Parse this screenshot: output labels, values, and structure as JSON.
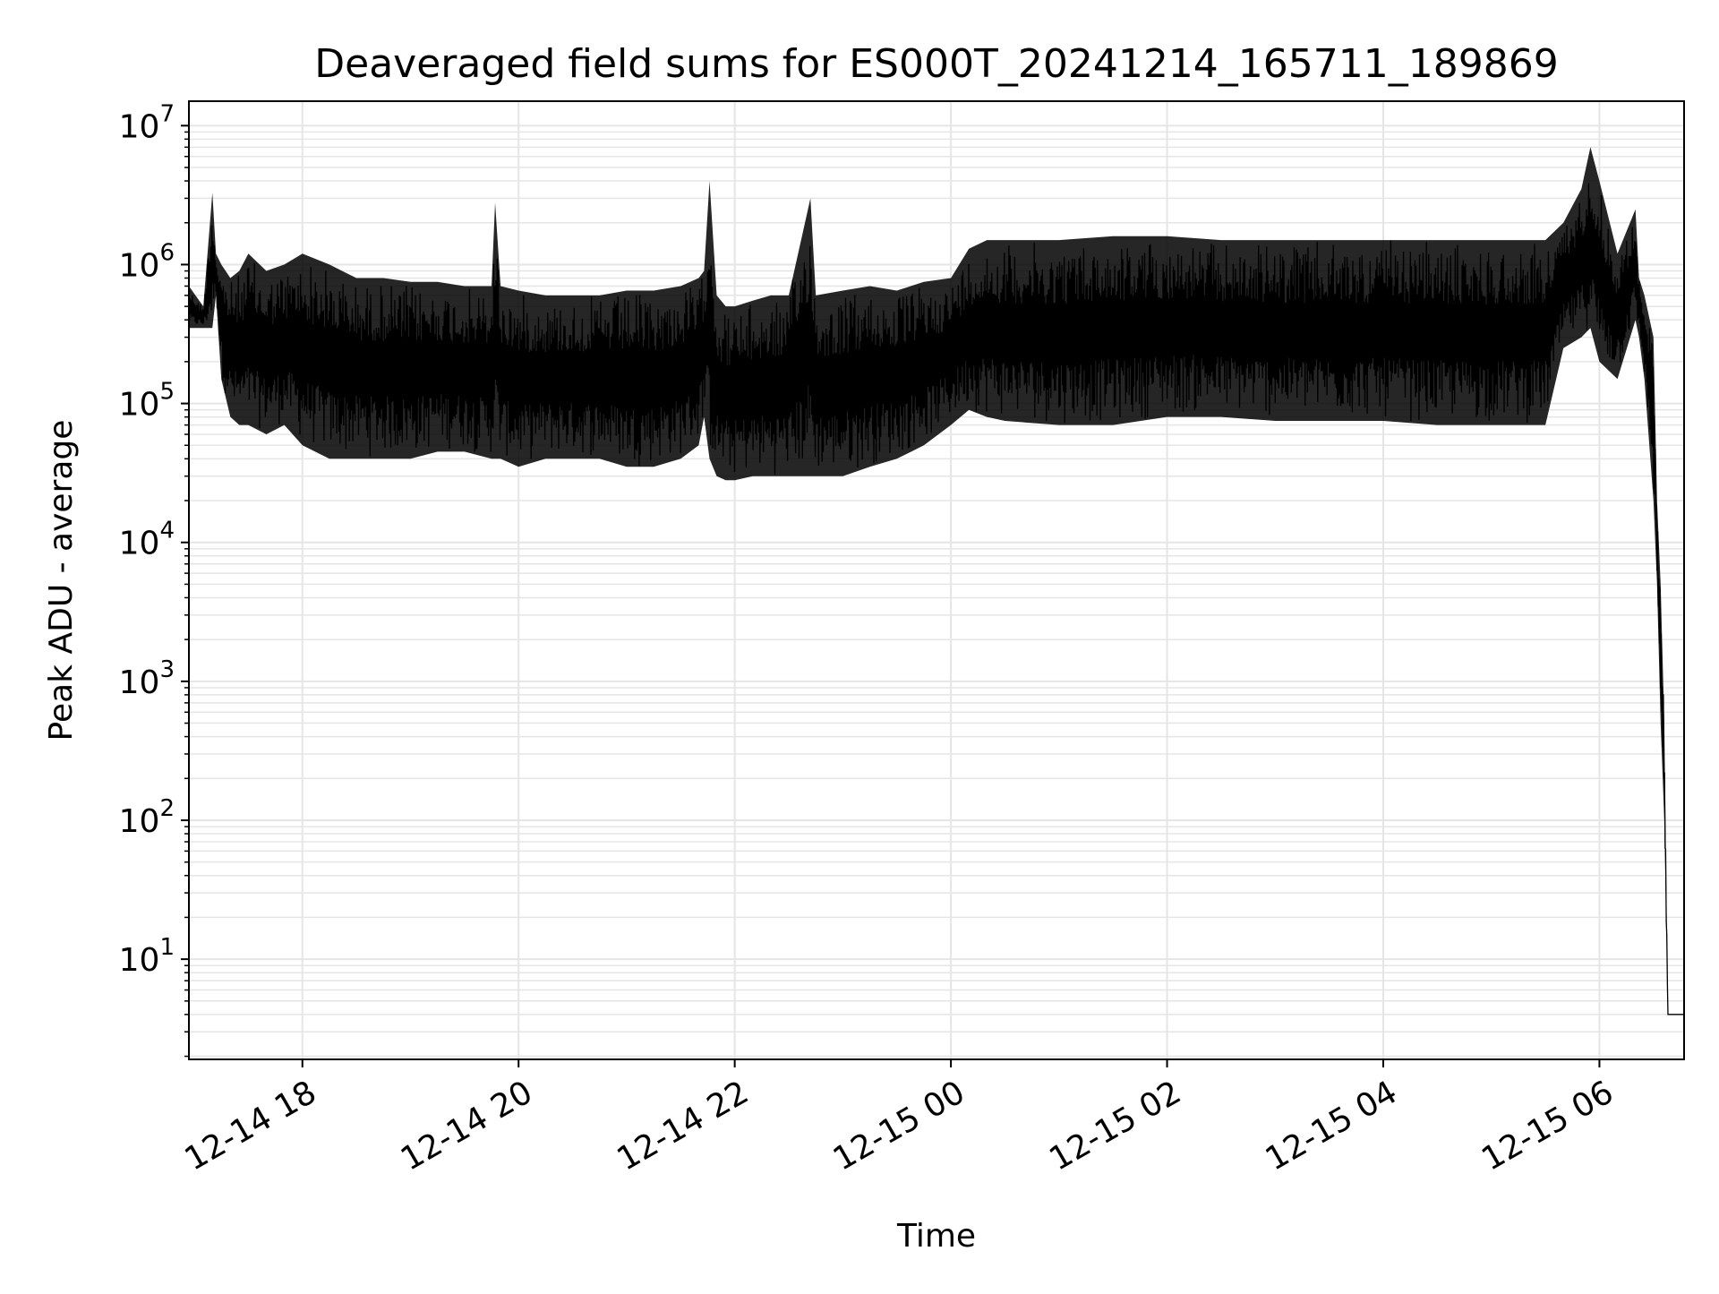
{
  "chart_data": {
    "type": "line",
    "title": "Deaveraged field sums for ES000T_20241214_165711_189869",
    "xlabel": "Time",
    "ylabel": "Peak ADU - average",
    "y_scale": "log",
    "ylim": [
      1.9,
      15000000
    ],
    "xlim": [
      "2024-12-14T16:57",
      "2024-12-15T06:47"
    ],
    "grid": true,
    "line_color": "#000000",
    "grid_color": "#e5e5e5",
    "x_ticks": [
      {
        "time": "2024-12-14T18:00",
        "label": "12-14 18"
      },
      {
        "time": "2024-12-14T20:00",
        "label": "12-14 20"
      },
      {
        "time": "2024-12-14T22:00",
        "label": "12-14 22"
      },
      {
        "time": "2024-12-15T00:00",
        "label": "12-15 00"
      },
      {
        "time": "2024-12-15T02:00",
        "label": "12-15 02"
      },
      {
        "time": "2024-12-15T04:00",
        "label": "12-15 04"
      },
      {
        "time": "2024-12-15T06:00",
        "label": "12-15 06"
      }
    ],
    "y_ticks": [
      {
        "value": 10,
        "base": "10",
        "exp": "1"
      },
      {
        "value": 100,
        "base": "10",
        "exp": "2"
      },
      {
        "value": 1000,
        "base": "10",
        "exp": "3"
      },
      {
        "value": 10000,
        "base": "10",
        "exp": "4"
      },
      {
        "value": 100000,
        "base": "10",
        "exp": "5"
      },
      {
        "value": 1000000,
        "base": "10",
        "exp": "6"
      },
      {
        "value": 10000000,
        "base": "10",
        "exp": "7"
      }
    ],
    "series": [
      {
        "x": [
          "2024-12-14T16:57",
          "2024-12-14T17:05",
          "2024-12-14T17:10",
          "2024-12-14T17:12",
          "2024-12-14T17:15",
          "2024-12-14T17:20",
          "2024-12-14T17:25",
          "2024-12-14T17:30",
          "2024-12-14T17:40",
          "2024-12-14T17:50",
          "2024-12-14T18:00",
          "2024-12-14T18:15",
          "2024-12-14T18:30",
          "2024-12-14T18:45",
          "2024-12-14T19:00",
          "2024-12-14T19:15",
          "2024-12-14T19:30",
          "2024-12-14T19:45",
          "2024-12-14T19:47",
          "2024-12-14T19:50",
          "2024-12-14T20:00",
          "2024-12-14T20:15",
          "2024-12-14T20:30",
          "2024-12-14T20:45",
          "2024-12-14T21:00",
          "2024-12-14T21:15",
          "2024-12-14T21:30",
          "2024-12-14T21:40",
          "2024-12-14T21:43",
          "2024-12-14T21:46",
          "2024-12-14T21:50",
          "2024-12-14T21:55",
          "2024-12-14T22:00",
          "2024-12-14T22:10",
          "2024-12-14T22:20",
          "2024-12-14T22:30",
          "2024-12-14T22:42",
          "2024-12-14T22:45",
          "2024-12-14T23:00",
          "2024-12-14T23:15",
          "2024-12-14T23:30",
          "2024-12-14T23:45",
          "2024-12-15T00:00",
          "2024-12-15T00:10",
          "2024-12-15T00:20",
          "2024-12-15T00:30",
          "2024-12-15T01:00",
          "2024-12-15T01:30",
          "2024-12-15T02:00",
          "2024-12-15T02:30",
          "2024-12-15T03:00",
          "2024-12-15T03:30",
          "2024-12-15T04:00",
          "2024-12-15T04:30",
          "2024-12-15T05:00",
          "2024-12-15T05:30",
          "2024-12-15T05:40",
          "2024-12-15T05:50",
          "2024-12-15T05:55",
          "2024-12-15T06:00",
          "2024-12-15T06:10",
          "2024-12-15T06:20",
          "2024-12-15T06:22",
          "2024-12-15T06:25",
          "2024-12-15T06:30",
          "2024-12-15T06:32",
          "2024-12-15T06:34",
          "2024-12-15T06:36",
          "2024-12-15T06:38",
          "2024-12-15T06:40",
          "2024-12-15T06:47"
        ],
        "upper": [
          700000,
          500000,
          3300000,
          1200000,
          1000000,
          800000,
          900000,
          1200000,
          900000,
          1000000,
          1200000,
          1000000,
          800000,
          800000,
          750000,
          750000,
          700000,
          700000,
          2800000,
          700000,
          650000,
          600000,
          600000,
          600000,
          650000,
          650000,
          700000,
          800000,
          900000,
          4000000,
          600000,
          500000,
          500000,
          550000,
          600000,
          600000,
          3000000,
          600000,
          650000,
          700000,
          650000,
          750000,
          800000,
          1300000,
          1500000,
          1500000,
          1500000,
          1600000,
          1600000,
          1500000,
          1500000,
          1500000,
          1500000,
          1500000,
          1500000,
          1500000,
          2000000,
          3500000,
          7000000,
          4000000,
          1200000,
          2500000,
          800000,
          600000,
          300000,
          20000,
          5000,
          500,
          4,
          4,
          4
        ],
        "lower": [
          350000,
          350000,
          350000,
          600000,
          150000,
          80000,
          70000,
          70000,
          60000,
          70000,
          50000,
          40000,
          40000,
          40000,
          40000,
          45000,
          45000,
          40000,
          40000,
          40000,
          35000,
          40000,
          40000,
          40000,
          35000,
          35000,
          40000,
          50000,
          80000,
          40000,
          30000,
          28000,
          28000,
          30000,
          30000,
          30000,
          30000,
          30000,
          30000,
          35000,
          40000,
          50000,
          70000,
          90000,
          80000,
          75000,
          70000,
          70000,
          80000,
          80000,
          75000,
          75000,
          75000,
          70000,
          70000,
          70000,
          250000,
          300000,
          350000,
          200000,
          150000,
          400000,
          300000,
          150000,
          20000,
          5000,
          500,
          100,
          4,
          4,
          4
        ]
      }
    ]
  }
}
